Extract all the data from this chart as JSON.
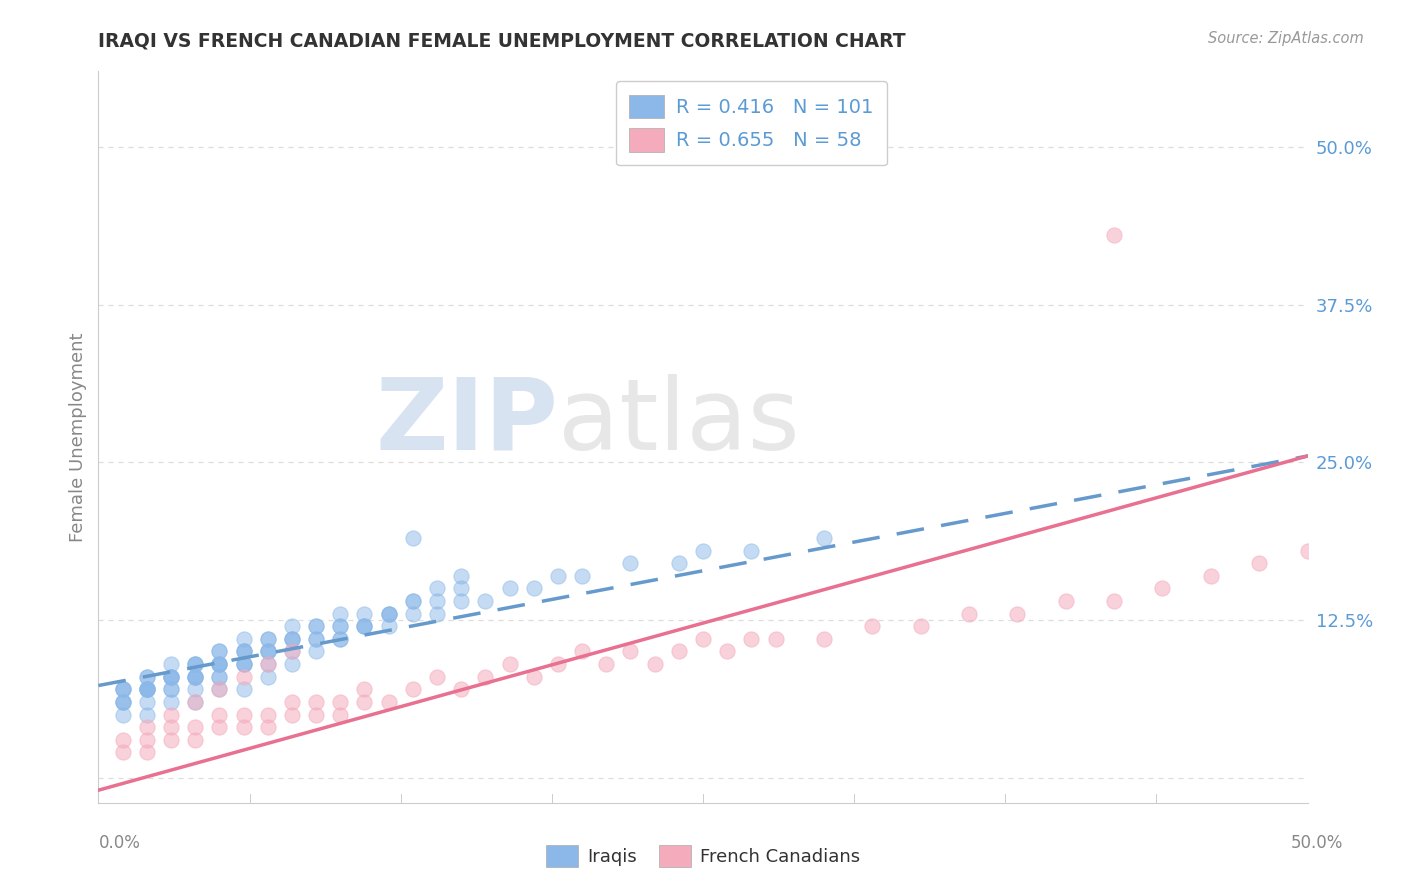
{
  "title": "IRAQI VS FRENCH CANADIAN FEMALE UNEMPLOYMENT CORRELATION CHART",
  "source": "Source: ZipAtlas.com",
  "ylabel": "Female Unemployment",
  "watermark_zip": "ZIP",
  "watermark_atlas": "atlas",
  "legend_iraqis_R": "0.416",
  "legend_iraqis_N": "101",
  "legend_french_R": "0.655",
  "legend_french_N": "58",
  "xlim": [
    0.0,
    0.5
  ],
  "ylim": [
    -0.02,
    0.56
  ],
  "yticks": [
    0.0,
    0.125,
    0.25,
    0.375,
    0.5
  ],
  "ytick_labels": [
    "",
    "12.5%",
    "25.0%",
    "37.5%",
    "50.0%"
  ],
  "blue_color": "#8BB8E8",
  "pink_color": "#F4ACBD",
  "blue_line_color": "#6699CC",
  "pink_line_color": "#E87090",
  "title_color": "#333333",
  "ylabel_color": "#888888",
  "ytick_color": "#5B9BD5",
  "grid_color": "#DDDDDD",
  "background_color": "#FFFFFF",
  "iraqis_x": [
    0.01,
    0.01,
    0.01,
    0.01,
    0.01,
    0.02,
    0.02,
    0.02,
    0.02,
    0.02,
    0.02,
    0.02,
    0.03,
    0.03,
    0.03,
    0.03,
    0.03,
    0.03,
    0.04,
    0.04,
    0.04,
    0.04,
    0.04,
    0.04,
    0.04,
    0.05,
    0.05,
    0.05,
    0.05,
    0.05,
    0.05,
    0.05,
    0.06,
    0.06,
    0.06,
    0.06,
    0.06,
    0.06,
    0.07,
    0.07,
    0.07,
    0.07,
    0.07,
    0.07,
    0.08,
    0.08,
    0.08,
    0.08,
    0.08,
    0.09,
    0.09,
    0.09,
    0.09,
    0.1,
    0.1,
    0.1,
    0.1,
    0.11,
    0.11,
    0.11,
    0.12,
    0.12,
    0.12,
    0.13,
    0.13,
    0.14,
    0.14,
    0.15,
    0.15,
    0.16,
    0.17,
    0.18,
    0.19,
    0.2,
    0.22,
    0.24,
    0.25,
    0.27,
    0.3,
    0.01,
    0.01,
    0.02,
    0.02,
    0.03,
    0.03,
    0.04,
    0.04,
    0.05,
    0.05,
    0.06,
    0.06,
    0.07,
    0.08,
    0.09,
    0.1,
    0.11,
    0.12,
    0.13,
    0.14,
    0.15,
    0.13
  ],
  "iraqis_y": [
    0.06,
    0.07,
    0.06,
    0.07,
    0.07,
    0.06,
    0.07,
    0.07,
    0.07,
    0.08,
    0.07,
    0.08,
    0.07,
    0.08,
    0.08,
    0.07,
    0.08,
    0.09,
    0.07,
    0.08,
    0.08,
    0.08,
    0.09,
    0.09,
    0.08,
    0.08,
    0.09,
    0.09,
    0.09,
    0.09,
    0.08,
    0.1,
    0.09,
    0.09,
    0.1,
    0.1,
    0.09,
    0.1,
    0.09,
    0.1,
    0.1,
    0.11,
    0.1,
    0.11,
    0.1,
    0.11,
    0.11,
    0.11,
    0.12,
    0.11,
    0.11,
    0.12,
    0.12,
    0.11,
    0.12,
    0.12,
    0.13,
    0.12,
    0.12,
    0.13,
    0.12,
    0.13,
    0.13,
    0.13,
    0.14,
    0.13,
    0.14,
    0.14,
    0.15,
    0.14,
    0.15,
    0.15,
    0.16,
    0.16,
    0.17,
    0.17,
    0.18,
    0.18,
    0.19,
    0.05,
    0.06,
    0.05,
    0.07,
    0.06,
    0.08,
    0.06,
    0.09,
    0.07,
    0.1,
    0.07,
    0.11,
    0.08,
    0.09,
    0.1,
    0.11,
    0.12,
    0.13,
    0.14,
    0.15,
    0.16,
    0.19
  ],
  "french_x": [
    0.01,
    0.02,
    0.02,
    0.03,
    0.03,
    0.04,
    0.04,
    0.05,
    0.05,
    0.06,
    0.06,
    0.07,
    0.07,
    0.08,
    0.08,
    0.09,
    0.09,
    0.1,
    0.1,
    0.11,
    0.11,
    0.12,
    0.13,
    0.14,
    0.15,
    0.16,
    0.17,
    0.18,
    0.19,
    0.2,
    0.21,
    0.22,
    0.23,
    0.24,
    0.25,
    0.26,
    0.27,
    0.28,
    0.3,
    0.32,
    0.34,
    0.36,
    0.38,
    0.4,
    0.42,
    0.44,
    0.46,
    0.48,
    0.5,
    0.01,
    0.02,
    0.03,
    0.04,
    0.05,
    0.06,
    0.07,
    0.08,
    0.42
  ],
  "french_y": [
    0.02,
    0.02,
    0.03,
    0.03,
    0.04,
    0.04,
    0.03,
    0.04,
    0.05,
    0.04,
    0.05,
    0.05,
    0.04,
    0.05,
    0.06,
    0.05,
    0.06,
    0.06,
    0.05,
    0.06,
    0.07,
    0.06,
    0.07,
    0.08,
    0.07,
    0.08,
    0.09,
    0.08,
    0.09,
    0.1,
    0.09,
    0.1,
    0.09,
    0.1,
    0.11,
    0.1,
    0.11,
    0.11,
    0.11,
    0.12,
    0.12,
    0.13,
    0.13,
    0.14,
    0.14,
    0.15,
    0.16,
    0.17,
    0.18,
    0.03,
    0.04,
    0.05,
    0.06,
    0.07,
    0.08,
    0.09,
    0.1,
    0.43
  ],
  "blue_line_x": [
    0.0,
    0.5
  ],
  "blue_line_y": [
    0.073,
    0.255
  ],
  "pink_line_x": [
    0.0,
    0.5
  ],
  "pink_line_y": [
    -0.01,
    0.255
  ]
}
